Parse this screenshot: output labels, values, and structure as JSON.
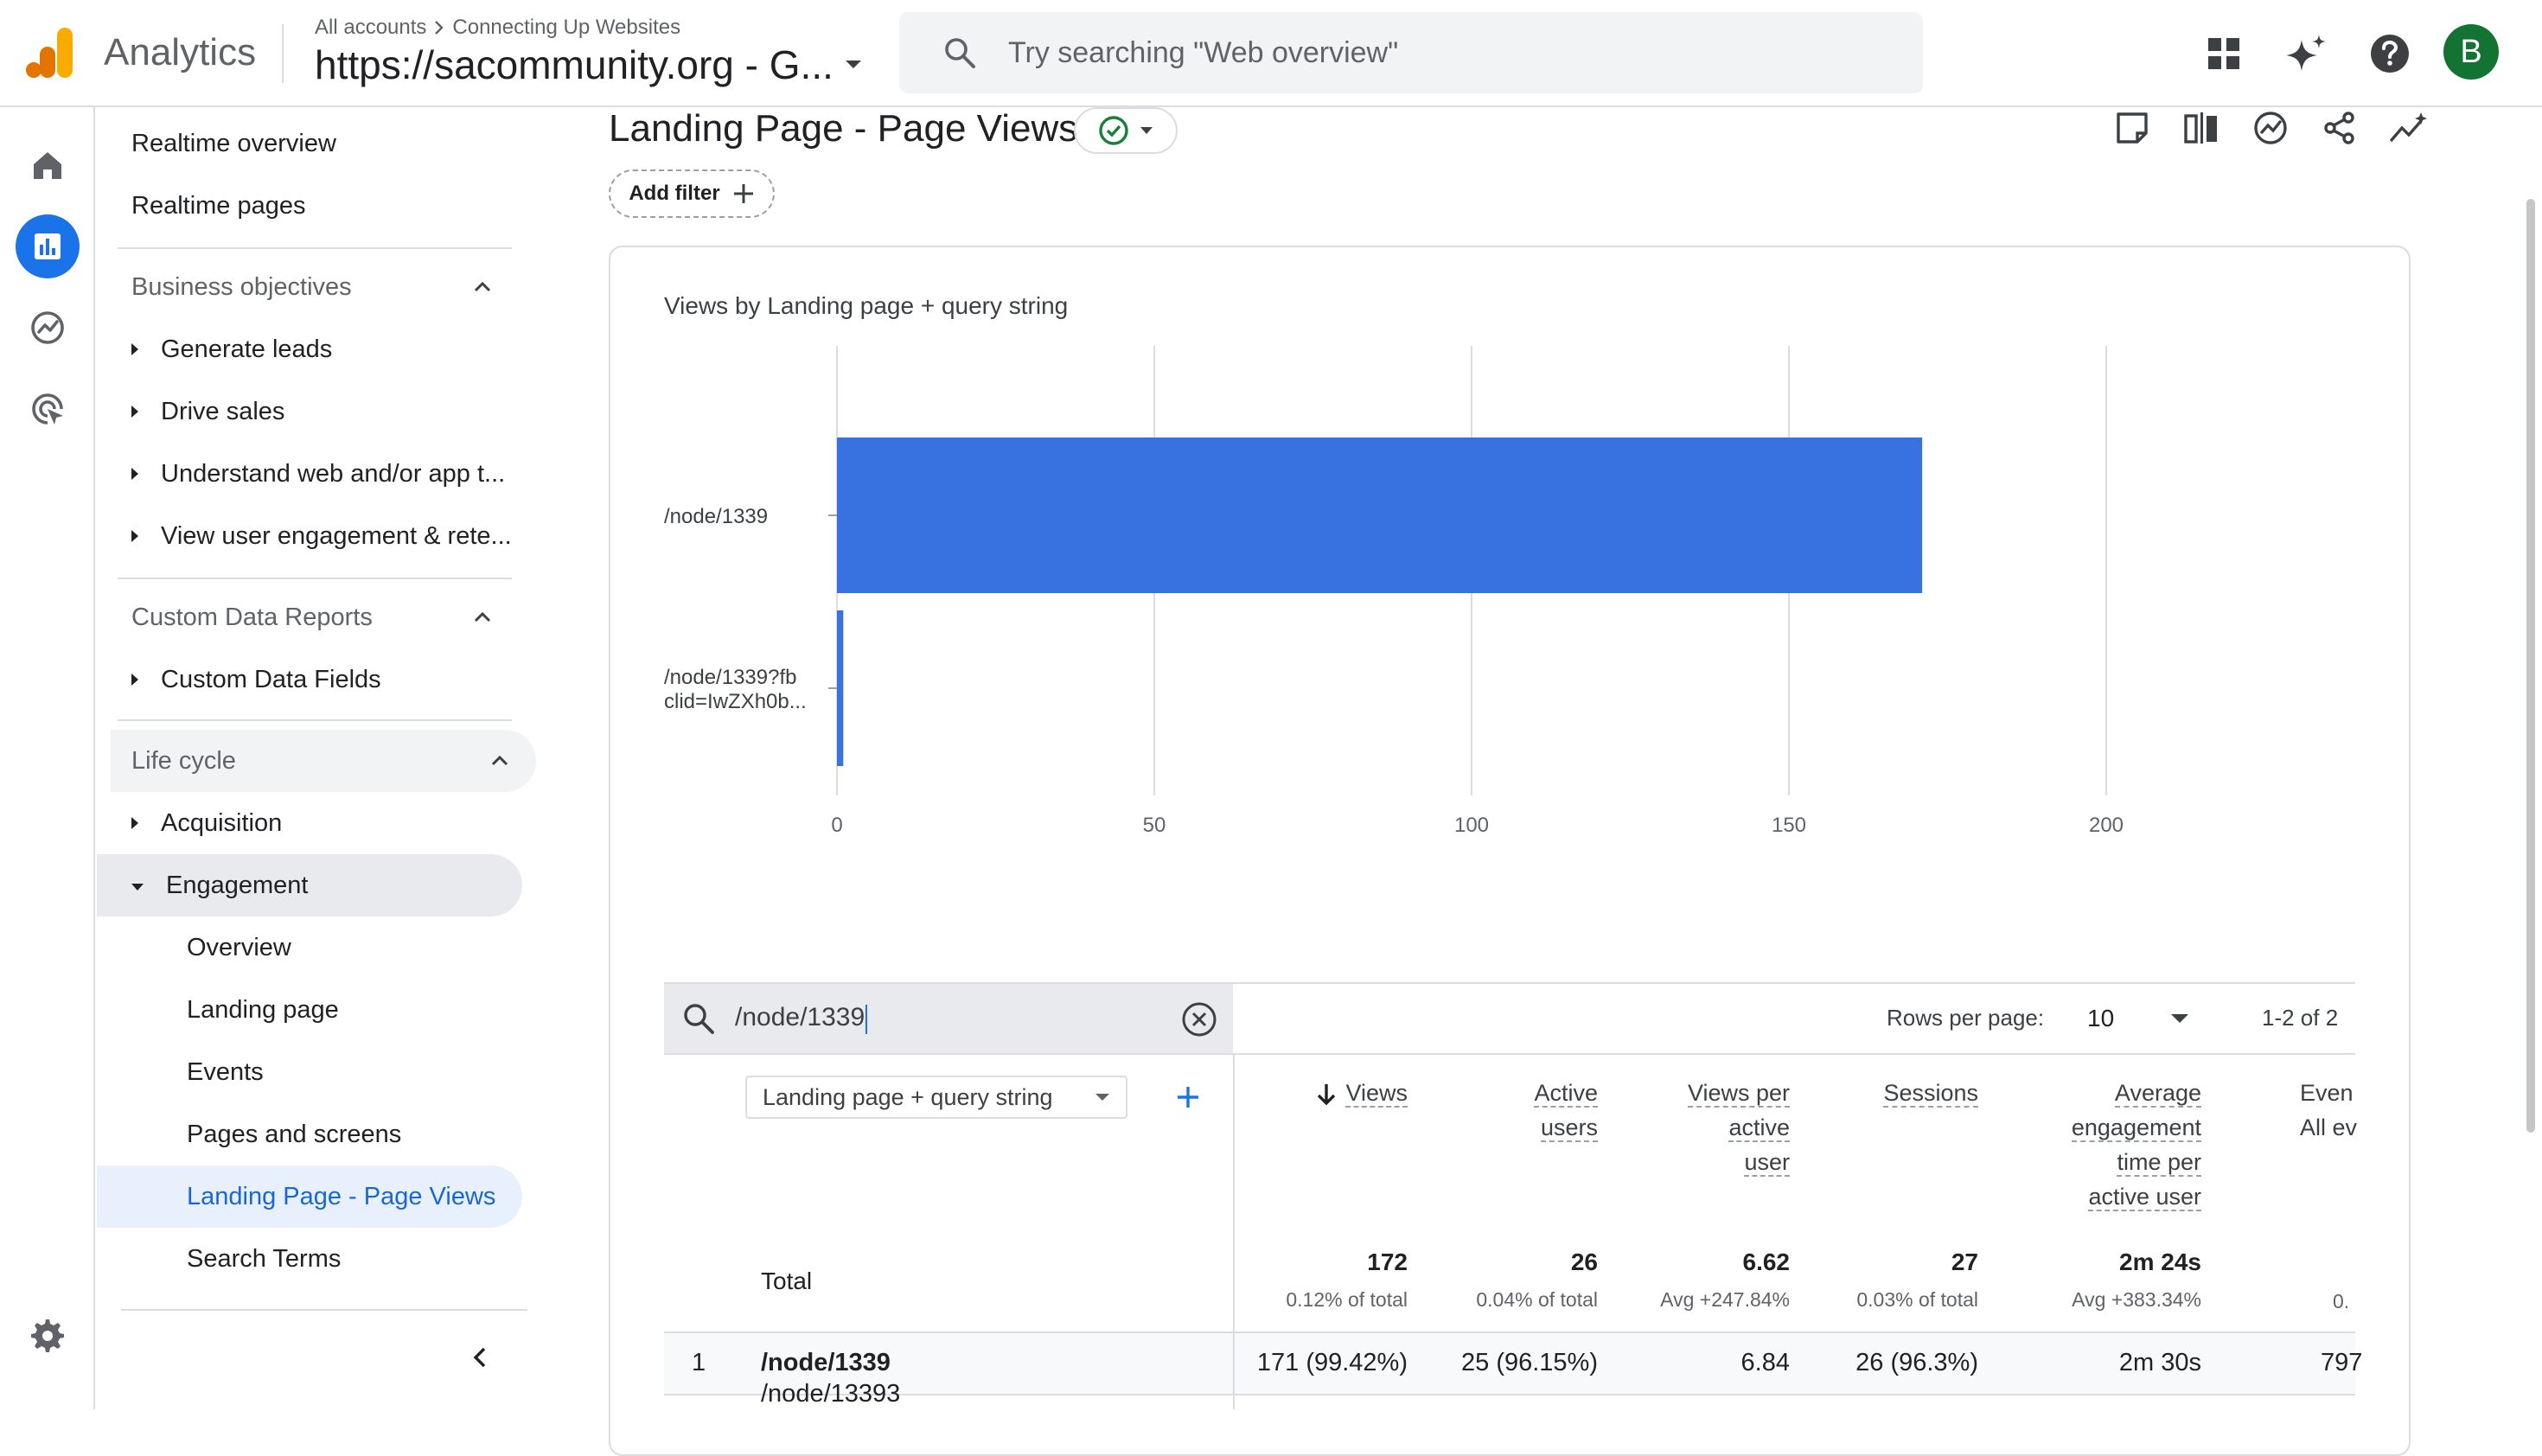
{
  "header": {
    "product_name": "Analytics",
    "breadcrumb_root": "All accounts",
    "breadcrumb_account": "Connecting Up Websites",
    "property_name": "https://sacommunity.org - G...",
    "search_placeholder": "Try searching \"Web overview\"",
    "avatar_letter": "B"
  },
  "nav": {
    "realtime_overview": "Realtime overview",
    "realtime_pages": "Realtime pages",
    "business_objectives": "Business objectives",
    "generate_leads": "Generate leads",
    "drive_sales": "Drive sales",
    "understand_web": "Understand web and/or app t...",
    "view_engagement": "View user engagement & rete...",
    "custom_data_reports": "Custom Data Reports",
    "custom_data_fields": "Custom Data Fields",
    "life_cycle": "Life cycle",
    "acquisition": "Acquisition",
    "engagement": "Engagement",
    "overview": "Overview",
    "landing_page": "Landing page",
    "events": "Events",
    "pages_and_screens": "Pages and screens",
    "landing_page_views": "Landing Page - Page Views",
    "search_terms": "Search Terms"
  },
  "report": {
    "title": "Landing Page - Page Views",
    "add_filter": "Add filter"
  },
  "chart_data": {
    "type": "bar",
    "orientation": "horizontal",
    "title": "Views by Landing page + query string",
    "categories": [
      "/node/1339",
      "/node/1339?fbclid=IwZXh0b..."
    ],
    "category_labels": [
      [
        "/node/1339"
      ],
      [
        "/node/1339?fb",
        "clid=IwZXh0b..."
      ]
    ],
    "series": [
      {
        "values": [
          171,
          1
        ]
      }
    ],
    "xlim": [
      0,
      200
    ],
    "xticks": [
      "0",
      "50",
      "100",
      "150",
      "200"
    ],
    "grid": true,
    "bar_color": "#3871e0"
  },
  "table": {
    "search_value": "/node/1339",
    "rows_per_page_label": "Rows per page:",
    "rows_per_page": "10",
    "pagination": "1-2 of 2",
    "dimension": "Landing page + query string",
    "headers": {
      "views": "Views",
      "active_users": [
        "Active",
        "users"
      ],
      "views_per_user": [
        "Views per",
        "active",
        "user"
      ],
      "sessions": "Sessions",
      "avg_engagement": [
        "Average",
        "engagement",
        "time per",
        "active user"
      ],
      "events": [
        "Even",
        "All ev"
      ]
    },
    "total_label": "Total",
    "totals": {
      "views": "172",
      "views_sub": "0.12% of total",
      "active_users": "26",
      "active_users_sub": "0.04% of total",
      "views_per_user": "6.62",
      "views_per_user_sub": "Avg +247.84%",
      "sessions": "27",
      "sessions_sub": "0.03% of total",
      "avg_engagement": "2m 24s",
      "avg_engagement_sub": "Avg +383.34%",
      "events_sub": "0."
    },
    "rows": [
      {
        "index": "1",
        "page": "/node/1339",
        "views": "171 (99.42%)",
        "active_users": "25 (96.15%)",
        "views_per_user": "6.84",
        "sessions": "26 (96.3%)",
        "avg_engagement": "2m 30s",
        "events": "797"
      }
    ],
    "next_row_partial": "/node/13393"
  }
}
